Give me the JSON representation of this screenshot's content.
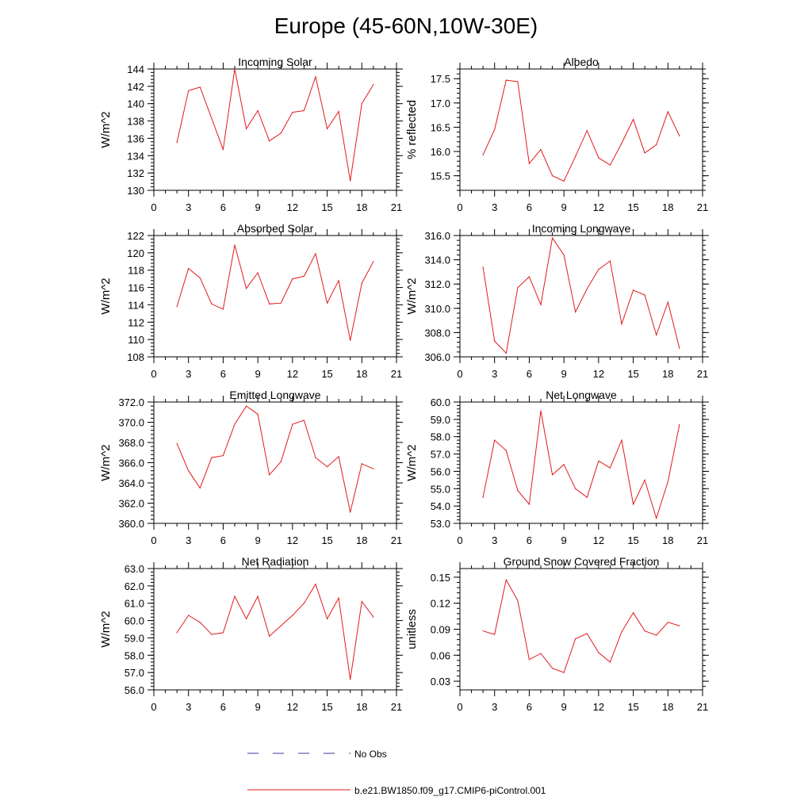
{
  "page_title": "Europe (45-60N,10W-30E)",
  "legend": {
    "obs_label": "No Obs",
    "model_label": "b.e21.BW1850.f09_g17.CMIP6-piControl.001",
    "obs_color": "#3a3aa0",
    "model_color": "#e31a1c"
  },
  "chart_data": [
    {
      "type": "line",
      "title": "Incoming Solar",
      "ylabel": "W/m^2",
      "xlim": [
        0,
        21
      ],
      "ylim": [
        130,
        144
      ],
      "xticks": [
        0,
        3,
        6,
        9,
        12,
        15,
        18,
        21
      ],
      "yticks": [
        130,
        132,
        134,
        136,
        138,
        140,
        142,
        144
      ],
      "ytick_labels": [
        "130",
        "132",
        "134",
        "136",
        "138",
        "140",
        "142",
        "144"
      ],
      "x": [
        2,
        3,
        4,
        5,
        6,
        7,
        8,
        9,
        10,
        11,
        12,
        13,
        14,
        15,
        16,
        17,
        18,
        19
      ],
      "series": [
        {
          "values": [
            135.5,
            141.5,
            141.9,
            138.3,
            134.7,
            144.0,
            137.1,
            139.2,
            135.7,
            136.6,
            139.0,
            139.2,
            143.1,
            137.1,
            139.1,
            131.1,
            140.0,
            142.2
          ]
        }
      ]
    },
    {
      "type": "line",
      "title": "Albedo",
      "ylabel": "% reflected",
      "xlim": [
        0,
        21
      ],
      "ylim": [
        15.2,
        17.7
      ],
      "xticks": [
        0,
        3,
        6,
        9,
        12,
        15,
        18,
        21
      ],
      "yticks": [
        15.5,
        16.0,
        16.5,
        17.0,
        17.5
      ],
      "ytick_labels": [
        "15.5",
        "16.0",
        "16.5",
        "17.0",
        "17.5"
      ],
      "x": [
        2,
        3,
        4,
        5,
        6,
        7,
        8,
        9,
        10,
        11,
        12,
        13,
        14,
        15,
        16,
        17,
        18,
        19
      ],
      "series": [
        {
          "values": [
            15.93,
            16.45,
            17.47,
            17.44,
            15.75,
            16.04,
            15.5,
            15.39,
            15.9,
            16.43,
            15.87,
            15.72,
            16.17,
            16.66,
            15.97,
            16.14,
            16.82,
            16.32
          ]
        }
      ]
    },
    {
      "type": "line",
      "title": "Absorbed Solar",
      "ylabel": "W/m^2",
      "xlim": [
        0,
        21
      ],
      "ylim": [
        108,
        122
      ],
      "xticks": [
        0,
        3,
        6,
        9,
        12,
        15,
        18,
        21
      ],
      "yticks": [
        108,
        110,
        112,
        114,
        116,
        118,
        120,
        122
      ],
      "ytick_labels": [
        "108",
        "110",
        "112",
        "114",
        "116",
        "118",
        "120",
        "122"
      ],
      "x": [
        2,
        3,
        4,
        5,
        6,
        7,
        8,
        9,
        10,
        11,
        12,
        13,
        14,
        15,
        16,
        17,
        18,
        19
      ],
      "series": [
        {
          "values": [
            113.8,
            118.2,
            117.1,
            114.1,
            113.5,
            120.9,
            115.9,
            117.7,
            114.1,
            114.2,
            117.0,
            117.3,
            119.9,
            114.2,
            116.8,
            109.9,
            116.5,
            119.0
          ]
        }
      ]
    },
    {
      "type": "line",
      "title": "Incoming Longwave",
      "ylabel": "W/m^2",
      "xlim": [
        0,
        21
      ],
      "ylim": [
        306,
        316
      ],
      "xticks": [
        0,
        3,
        6,
        9,
        12,
        15,
        18,
        21
      ],
      "yticks": [
        306,
        308,
        310,
        312,
        314,
        316
      ],
      "ytick_labels": [
        "306.0",
        "308.0",
        "310.0",
        "312.0",
        "314.0",
        "316.0"
      ],
      "x": [
        2,
        3,
        4,
        5,
        6,
        7,
        8,
        9,
        10,
        11,
        12,
        13,
        14,
        15,
        16,
        17,
        18,
        19
      ],
      "series": [
        {
          "values": [
            313.4,
            307.3,
            306.3,
            311.7,
            312.6,
            310.3,
            315.8,
            314.4,
            309.7,
            311.6,
            313.2,
            313.9,
            308.7,
            311.5,
            311.1,
            307.8,
            310.5,
            306.7
          ]
        }
      ]
    },
    {
      "type": "line",
      "title": "Emitted Longwave",
      "ylabel": "W/m^2",
      "xlim": [
        0,
        21
      ],
      "ylim": [
        360,
        372
      ],
      "xticks": [
        0,
        3,
        6,
        9,
        12,
        15,
        18,
        21
      ],
      "yticks": [
        360,
        362,
        364,
        366,
        368,
        370,
        372
      ],
      "ytick_labels": [
        "360.0",
        "362.0",
        "364.0",
        "366.0",
        "368.0",
        "370.0",
        "372.0"
      ],
      "x": [
        2,
        3,
        4,
        5,
        6,
        7,
        8,
        9,
        10,
        11,
        12,
        13,
        14,
        15,
        16,
        17,
        18,
        19
      ],
      "series": [
        {
          "values": [
            367.9,
            365.2,
            363.5,
            366.5,
            366.7,
            369.8,
            371.6,
            370.8,
            364.8,
            366.1,
            369.8,
            370.2,
            366.5,
            365.6,
            366.6,
            361.1,
            365.9,
            365.4
          ]
        }
      ]
    },
    {
      "type": "line",
      "title": "Net Longwave",
      "ylabel": "W/m^2",
      "xlim": [
        0,
        21
      ],
      "ylim": [
        53,
        60
      ],
      "xticks": [
        0,
        3,
        6,
        9,
        12,
        15,
        18,
        21
      ],
      "yticks": [
        53,
        54,
        55,
        56,
        57,
        58,
        59,
        60
      ],
      "ytick_labels": [
        "53.0",
        "54.0",
        "55.0",
        "56.0",
        "57.0",
        "58.0",
        "59.0",
        "60.0"
      ],
      "x": [
        2,
        3,
        4,
        5,
        6,
        7,
        8,
        9,
        10,
        11,
        12,
        13,
        14,
        15,
        16,
        17,
        18,
        19
      ],
      "series": [
        {
          "values": [
            54.5,
            57.8,
            57.2,
            54.9,
            54.1,
            59.5,
            55.8,
            56.4,
            55.0,
            54.5,
            56.6,
            56.2,
            57.8,
            54.1,
            55.5,
            53.3,
            55.4,
            58.7
          ]
        }
      ]
    },
    {
      "type": "line",
      "title": "Net Radiation",
      "ylabel": "W/m^2",
      "xlim": [
        0,
        21
      ],
      "ylim": [
        56,
        63
      ],
      "xticks": [
        0,
        3,
        6,
        9,
        12,
        15,
        18,
        21
      ],
      "yticks": [
        56,
        57,
        58,
        59,
        60,
        61,
        62,
        63
      ],
      "ytick_labels": [
        "56.0",
        "57.0",
        "58.0",
        "59.0",
        "60.0",
        "61.0",
        "62.0",
        "63.0"
      ],
      "x": [
        2,
        3,
        4,
        5,
        6,
        7,
        8,
        9,
        10,
        11,
        12,
        13,
        14,
        15,
        16,
        17,
        18,
        19
      ],
      "series": [
        {
          "values": [
            59.3,
            60.3,
            59.9,
            59.2,
            59.3,
            61.4,
            60.1,
            61.4,
            59.1,
            59.7,
            60.3,
            61.0,
            62.1,
            60.1,
            61.3,
            56.6,
            61.1,
            60.2
          ]
        }
      ]
    },
    {
      "type": "line",
      "title": "Ground Snow Covered Fraction",
      "ylabel": "unitless",
      "xlim": [
        0,
        21
      ],
      "ylim": [
        0.02,
        0.16
      ],
      "xticks": [
        0,
        3,
        6,
        9,
        12,
        15,
        18,
        21
      ],
      "yticks": [
        0.03,
        0.06,
        0.09,
        0.12,
        0.15
      ],
      "ytick_labels": [
        "0.03",
        "0.06",
        "0.09",
        "0.12",
        "0.15"
      ],
      "x": [
        2,
        3,
        4,
        5,
        6,
        7,
        8,
        9,
        10,
        11,
        12,
        13,
        14,
        15,
        16,
        17,
        18,
        19
      ],
      "series": [
        {
          "values": [
            0.088,
            0.084,
            0.147,
            0.123,
            0.055,
            0.062,
            0.045,
            0.04,
            0.079,
            0.085,
            0.063,
            0.052,
            0.087,
            0.109,
            0.088,
            0.083,
            0.098,
            0.094
          ]
        }
      ]
    }
  ]
}
